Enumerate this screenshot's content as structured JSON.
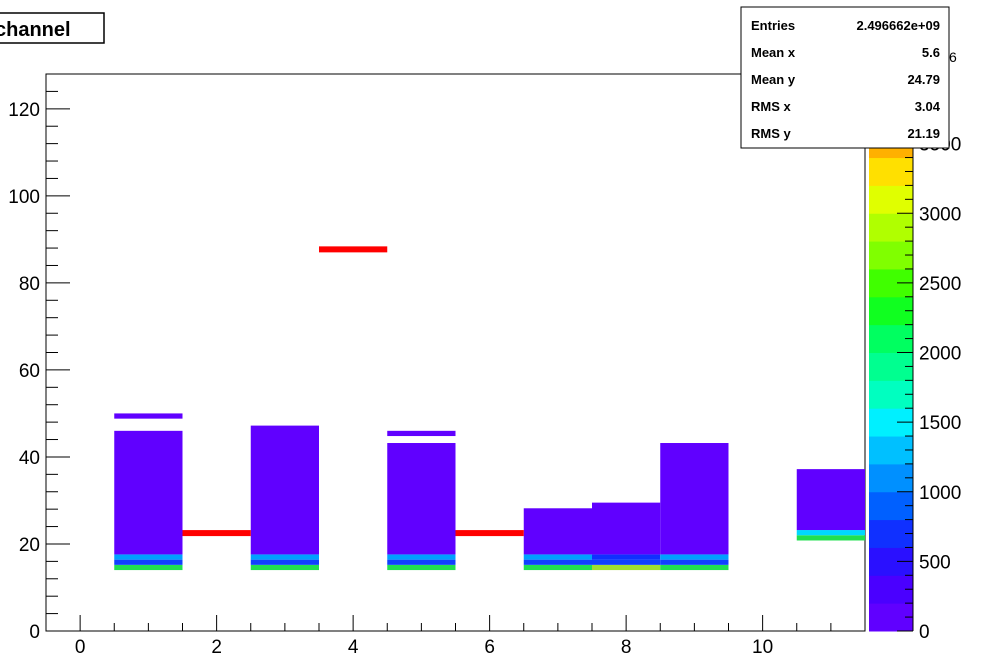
{
  "chart_data": {
    "type": "heatmap",
    "title": "channel",
    "xlim": [
      -0.5,
      11.5
    ],
    "ylim": [
      0,
      128
    ],
    "x_ticks": [
      0,
      2,
      4,
      6,
      8,
      10
    ],
    "y_ticks": [
      0,
      20,
      40,
      60,
      80,
      100,
      120
    ],
    "colorbar": {
      "range": [
        0,
        4000
      ],
      "ticks": [
        0,
        500,
        1000,
        1500,
        2000,
        2500,
        3000,
        3500
      ],
      "exponent_label": "6",
      "partial_top_label": "00",
      "palette": [
        "#6000ff",
        "#4a00ff",
        "#2a10ff",
        "#1030ff",
        "#0060ff",
        "#0090ff",
        "#00c0ff",
        "#00f0ff",
        "#00ffc0",
        "#00ff90",
        "#00ff60",
        "#10ff20",
        "#40ff00",
        "#80ff00",
        "#b0ff00",
        "#e0ff00",
        "#ffe000",
        "#ffb000",
        "#ff9000",
        "#ff7000"
      ]
    },
    "stats": [
      {
        "label": "Entries",
        "value": "2.496662e+09"
      },
      {
        "label": "Mean x",
        "value": "5.6"
      },
      {
        "label": "Mean y",
        "value": "24.79"
      },
      {
        "label": "RMS x",
        "value": "3.04"
      },
      {
        "label": "RMS y",
        "value": "21.19"
      }
    ],
    "cells": [
      {
        "x": 1,
        "y0": 14,
        "y1": 15.2,
        "color": "#20e050"
      },
      {
        "x": 1,
        "y0": 15.2,
        "y1": 16.4,
        "color": "#1040ff"
      },
      {
        "x": 1,
        "y0": 16.4,
        "y1": 17.6,
        "color": "#00a0ff"
      },
      {
        "x": 1,
        "y0": 17.6,
        "y1": 46.0,
        "color": "#6000ff"
      },
      {
        "x": 1,
        "y0": 48.8,
        "y1": 50.0,
        "color": "#6000ff"
      },
      {
        "x": 3,
        "y0": 14,
        "y1": 15.2,
        "color": "#20e050"
      },
      {
        "x": 3,
        "y0": 15.2,
        "y1": 16.4,
        "color": "#1040ff"
      },
      {
        "x": 3,
        "y0": 16.4,
        "y1": 17.6,
        "color": "#00a0ff"
      },
      {
        "x": 3,
        "y0": 17.6,
        "y1": 47.2,
        "color": "#6000ff"
      },
      {
        "x": 5,
        "y0": 14,
        "y1": 15.2,
        "color": "#20e050"
      },
      {
        "x": 5,
        "y0": 15.2,
        "y1": 16.4,
        "color": "#1040ff"
      },
      {
        "x": 5,
        "y0": 16.4,
        "y1": 17.6,
        "color": "#00a0ff"
      },
      {
        "x": 5,
        "y0": 17.6,
        "y1": 43.2,
        "color": "#6000ff"
      },
      {
        "x": 5,
        "y0": 44.8,
        "y1": 46.0,
        "color": "#6000ff"
      },
      {
        "x": 7,
        "y0": 14,
        "y1": 15.2,
        "color": "#20e050"
      },
      {
        "x": 7,
        "y0": 15.2,
        "y1": 16.4,
        "color": "#1040ff"
      },
      {
        "x": 7,
        "y0": 16.4,
        "y1": 17.6,
        "color": "#00a0ff"
      },
      {
        "x": 7,
        "y0": 17.6,
        "y1": 28.2,
        "color": "#6000ff"
      },
      {
        "x": 8,
        "y0": 14,
        "y1": 15.2,
        "color": "#a0e030"
      },
      {
        "x": 8,
        "y0": 15.2,
        "y1": 16.4,
        "color": "#1040ff"
      },
      {
        "x": 8,
        "y0": 16.4,
        "y1": 17.6,
        "color": "#1030ff"
      },
      {
        "x": 8,
        "y0": 17.6,
        "y1": 29.5,
        "color": "#6000ff"
      },
      {
        "x": 9,
        "y0": 14,
        "y1": 15.2,
        "color": "#20e050"
      },
      {
        "x": 9,
        "y0": 15.2,
        "y1": 16.4,
        "color": "#1040ff"
      },
      {
        "x": 9,
        "y0": 16.4,
        "y1": 17.6,
        "color": "#00a0ff"
      },
      {
        "x": 9,
        "y0": 17.6,
        "y1": 43.2,
        "color": "#6000ff"
      },
      {
        "x": 11,
        "y0": 20.8,
        "y1": 22.0,
        "color": "#20e050"
      },
      {
        "x": 11,
        "y0": 22.0,
        "y1": 23.2,
        "color": "#00d8ff"
      },
      {
        "x": 11,
        "y0": 23.2,
        "y1": 37.2,
        "color": "#6000ff"
      }
    ],
    "red_marks": [
      {
        "x": 2,
        "y": 22.5
      },
      {
        "x": 4,
        "y": 87.7
      },
      {
        "x": 6,
        "y": 22.5
      }
    ]
  }
}
